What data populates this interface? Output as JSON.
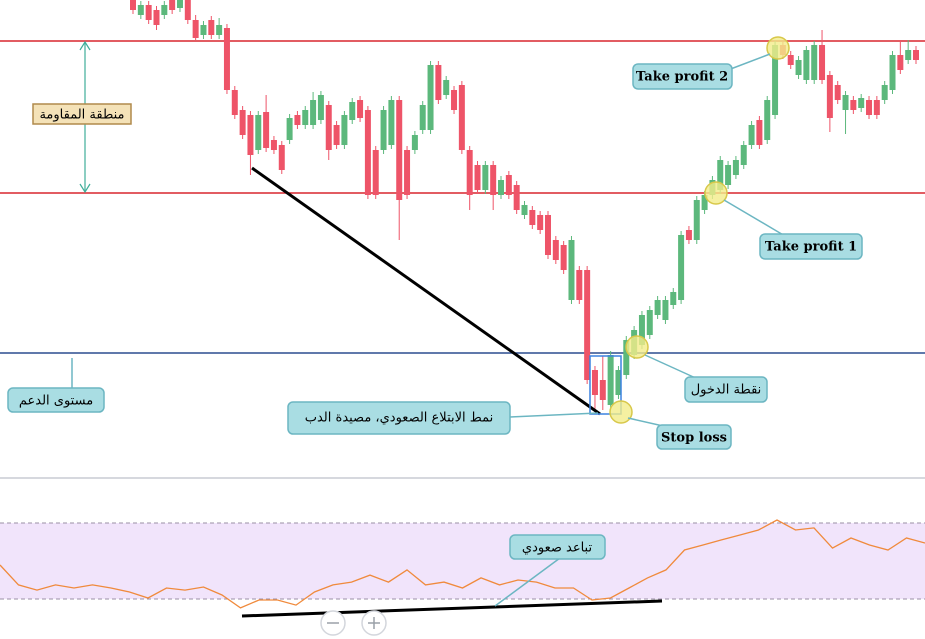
{
  "chart_data": {
    "type": "candlestick",
    "ylim": [
      0,
      480
    ],
    "up_color": "#5cb87c",
    "down_color": "#ee5468",
    "ohlc": [
      [
        480,
        484,
        466,
        470
      ],
      [
        465,
        479,
        461,
        475
      ],
      [
        475,
        479,
        456,
        460
      ],
      [
        470,
        474,
        450,
        455
      ],
      [
        465,
        479,
        461,
        475
      ],
      [
        480,
        484,
        466,
        470
      ],
      [
        472,
        484,
        468,
        480
      ],
      [
        480,
        484,
        456,
        460
      ],
      [
        460,
        465,
        440,
        442
      ],
      [
        445,
        459,
        441,
        455
      ],
      [
        460,
        464,
        441,
        445
      ],
      [
        445,
        462,
        441,
        455
      ],
      [
        452,
        456,
        386,
        390
      ],
      [
        390,
        394,
        361,
        365
      ],
      [
        370,
        374,
        341,
        345
      ],
      [
        365,
        369,
        305,
        325
      ],
      [
        330,
        369,
        326,
        365
      ],
      [
        368,
        385,
        328,
        332
      ],
      [
        340,
        344,
        326,
        330
      ],
      [
        335,
        339,
        306,
        310
      ],
      [
        340,
        366,
        336,
        362
      ],
      [
        365,
        369,
        351,
        355
      ],
      [
        355,
        374,
        351,
        370
      ],
      [
        355,
        388,
        351,
        380
      ],
      [
        360,
        389,
        356,
        385
      ],
      [
        375,
        379,
        320,
        330
      ],
      [
        355,
        359,
        331,
        335
      ],
      [
        335,
        369,
        331,
        365
      ],
      [
        360,
        382,
        356,
        378
      ],
      [
        380,
        384,
        358,
        362
      ],
      [
        370,
        374,
        281,
        285
      ],
      [
        330,
        334,
        281,
        285
      ],
      [
        330,
        374,
        326,
        370
      ],
      [
        335,
        384,
        331,
        380
      ],
      [
        380,
        384,
        240,
        280
      ],
      [
        330,
        334,
        281,
        285
      ],
      [
        330,
        349,
        326,
        345
      ],
      [
        350,
        379,
        346,
        375
      ],
      [
        350,
        419,
        346,
        415
      ],
      [
        415,
        419,
        376,
        380
      ],
      [
        385,
        404,
        381,
        400
      ],
      [
        390,
        394,
        366,
        370
      ],
      [
        395,
        399,
        326,
        330
      ],
      [
        330,
        334,
        270,
        285
      ],
      [
        315,
        319,
        286,
        290
      ],
      [
        290,
        319,
        286,
        315
      ],
      [
        315,
        319,
        270,
        285
      ],
      [
        285,
        304,
        281,
        300
      ],
      [
        305,
        309,
        281,
        285
      ],
      [
        295,
        299,
        266,
        270
      ],
      [
        265,
        279,
        261,
        275
      ],
      [
        270,
        274,
        251,
        255
      ],
      [
        265,
        269,
        246,
        250
      ],
      [
        265,
        269,
        221,
        225
      ],
      [
        240,
        244,
        216,
        220
      ],
      [
        235,
        239,
        206,
        210
      ],
      [
        180,
        244,
        176,
        240
      ],
      [
        210,
        214,
        176,
        180
      ],
      [
        210,
        214,
        96,
        100
      ],
      [
        110,
        114,
        70,
        85
      ],
      [
        100,
        124,
        70,
        80
      ],
      [
        75,
        129,
        70,
        125
      ],
      [
        85,
        114,
        81,
        110
      ],
      [
        105,
        144,
        101,
        140
      ],
      [
        125,
        154,
        121,
        150
      ],
      [
        135,
        169,
        131,
        165
      ],
      [
        145,
        174,
        141,
        170
      ],
      [
        165,
        184,
        161,
        180
      ],
      [
        160,
        184,
        156,
        180
      ],
      [
        175,
        192,
        171,
        188
      ],
      [
        180,
        249,
        176,
        245
      ],
      [
        250,
        254,
        236,
        240
      ],
      [
        240,
        284,
        236,
        280
      ],
      [
        270,
        289,
        266,
        285
      ],
      [
        285,
        304,
        281,
        300
      ],
      [
        290,
        324,
        286,
        320
      ],
      [
        295,
        319,
        291,
        315
      ],
      [
        305,
        324,
        301,
        320
      ],
      [
        315,
        339,
        311,
        335
      ],
      [
        335,
        359,
        331,
        355
      ],
      [
        360,
        364,
        331,
        335
      ],
      [
        340,
        384,
        336,
        380
      ],
      [
        365,
        439,
        361,
        435
      ],
      [
        435,
        439,
        421,
        425
      ],
      [
        425,
        429,
        411,
        415
      ],
      [
        405,
        424,
        401,
        420
      ],
      [
        400,
        434,
        396,
        430
      ],
      [
        400,
        439,
        396,
        435
      ],
      [
        435,
        450,
        396,
        400
      ],
      [
        405,
        409,
        348,
        362
      ],
      [
        395,
        399,
        376,
        380
      ],
      [
        370,
        389,
        346,
        385
      ],
      [
        380,
        384,
        366,
        370
      ],
      [
        372,
        386,
        368,
        382
      ],
      [
        380,
        384,
        361,
        365
      ],
      [
        380,
        384,
        361,
        365
      ],
      [
        380,
        399,
        376,
        395
      ],
      [
        390,
        429,
        386,
        425
      ],
      [
        425,
        440,
        406,
        410
      ],
      [
        420,
        440,
        416,
        430
      ],
      [
        430,
        434,
        416,
        420
      ]
    ],
    "resistance_levels": [
      439,
      287
    ],
    "resistance_color": "#d9262f",
    "support_level": 127,
    "support_color": "#2b4d8f",
    "rsi": {
      "values": [
        47.9,
        37.4,
        34.7,
        37.4,
        35.8,
        37.4,
        35.8,
        33.7,
        30.5,
        35.8,
        34.7,
        36.3,
        32.1,
        25.3,
        29.5,
        29.5,
        26.8,
        33.7,
        37.4,
        38.9,
        42.6,
        38.9,
        45.3,
        37.4,
        38.9,
        35.8,
        41.1,
        37.4,
        40,
        38.9,
        35.8,
        35.8,
        29.5,
        30.5,
        35.8,
        41.1,
        45.3,
        55.8,
        58.4,
        61.1,
        63.7,
        66.3,
        71.6,
        66.3,
        67.4,
        56.8,
        62.1,
        58.4,
        55.8,
        62.1,
        59.5
      ],
      "ylim": [
        0,
        100
      ],
      "bands": [
        30,
        70
      ],
      "color": "#f08a3c"
    },
    "annotations": {
      "take_profit_2": "Take profit 2",
      "take_profit_1": "Take profit 1",
      "entry": "نقطة الدخول",
      "stop_loss": "Stop loss",
      "engulfing": "نمط الابتلاع الصعودي، مصيدة الدب",
      "support": "مستوى الدعم",
      "resistance": "منطقة المقاومة",
      "divergence": "تباعد صعودي"
    }
  }
}
